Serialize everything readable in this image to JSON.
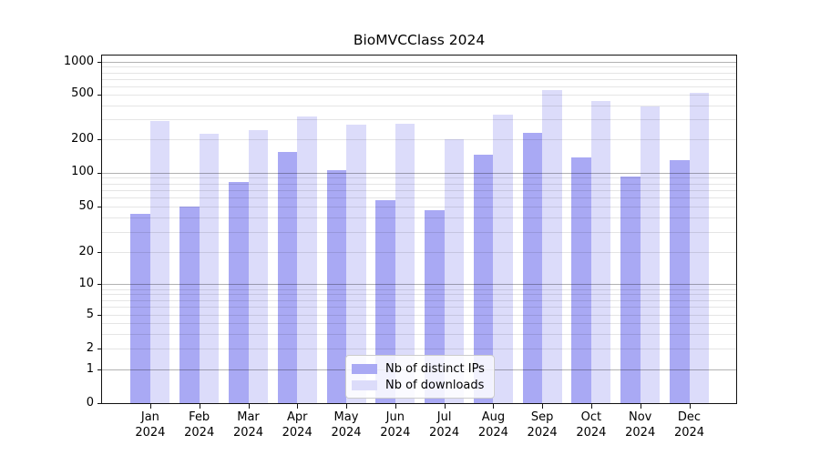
{
  "chart_data": {
    "type": "bar",
    "title": "BioMVCClass 2024",
    "scale": "symlog",
    "grid": true,
    "legend_position": "lower center",
    "categories": [
      "Jan",
      "Feb",
      "Mar",
      "Apr",
      "May",
      "Jun",
      "Jul",
      "Aug",
      "Sep",
      "Oct",
      "Nov",
      "Dec"
    ],
    "year": "2024",
    "series": [
      {
        "name": "Nb of distinct IPs",
        "color": "#a9a9f4",
        "values": [
          43,
          50,
          83,
          155,
          106,
          57,
          47,
          146,
          230,
          138,
          93,
          130
        ]
      },
      {
        "name": "Nb of downloads",
        "color": "#dcdcfa",
        "values": [
          290,
          225,
          240,
          320,
          270,
          275,
          200,
          330,
          555,
          440,
          395,
          515
        ]
      }
    ],
    "yticks": [
      0,
      1,
      2,
      5,
      10,
      20,
      50,
      100,
      200,
      500,
      1000
    ],
    "ytick_labels": [
      "0",
      "1",
      "2",
      "5",
      "10",
      "20",
      "50",
      "100",
      "200",
      "500",
      "1000"
    ],
    "ylim": [
      0,
      1160
    ],
    "xlabel": "",
    "ylabel": ""
  }
}
